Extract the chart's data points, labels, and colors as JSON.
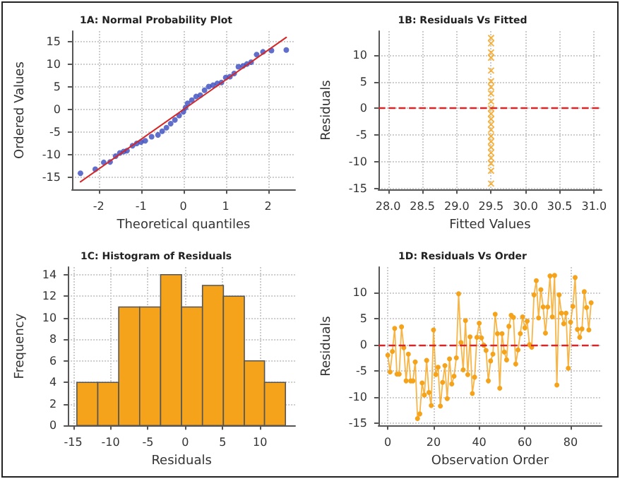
{
  "chart_data": [
    {
      "type": "scatter",
      "title": "1A: Normal Probability Plot",
      "xlabel": "Theoretical quantiles",
      "ylabel": "Ordered Values",
      "xlim": [
        -2.63,
        2.64
      ],
      "ylim": [
        -17.7,
        17.4
      ],
      "xticks": [
        -2,
        -1,
        0,
        1,
        2
      ],
      "yticks": [
        -15,
        -10,
        -5,
        0,
        5,
        10,
        15
      ],
      "grid": true,
      "series": [
        {
          "type": "scatter",
          "marker": "circle",
          "color": "#3a4bbf",
          "x": [
            -2.43,
            -2.08,
            -1.88,
            -1.73,
            -1.6,
            -1.5,
            -1.41,
            -1.33,
            -1.2,
            -1.1,
            -1.0,
            -0.9,
            -0.75,
            -0.6,
            -0.5,
            -0.4,
            -0.3,
            -0.2,
            -0.1,
            0,
            0.05,
            0.1,
            0.2,
            0.3,
            0.4,
            0.5,
            0.6,
            0.7,
            0.8,
            0.9,
            1.0,
            1.1,
            1.2,
            1.3,
            1.41,
            1.5,
            1.6,
            1.73,
            1.88,
            2.08,
            2.43
          ],
          "values": [
            -14.1,
            -13.2,
            -11.7,
            -11.6,
            -10.3,
            -9.6,
            -9.3,
            -9.1,
            -8.0,
            -7.5,
            -7.2,
            -6.9,
            -6.0,
            -5.6,
            -4.8,
            -4.0,
            -3.1,
            -2.3,
            -1.3,
            -0.5,
            0.4,
            1.4,
            2.1,
            2.9,
            3.2,
            4.3,
            5.1,
            5.4,
            5.8,
            6.0,
            7.1,
            7.3,
            8.0,
            9.5,
            9.7,
            10.1,
            10.5,
            12.2,
            12.8,
            13.1,
            13.2
          ]
        },
        {
          "type": "line",
          "marker": "none",
          "color": "#d62728",
          "x": [
            -2.43,
            2.43
          ],
          "values": [
            -16,
            16
          ]
        }
      ]
    },
    {
      "type": "scatter",
      "title": "1B: Residuals Vs Fitted",
      "xlabel": "Fitted Values",
      "ylabel": "Residuals",
      "xlim": [
        27.86,
        31.11
      ],
      "ylim": [
        -15.2,
        14.5
      ],
      "xticks": [
        {
          "value": 28,
          "label": "28.0"
        },
        28.5,
        {
          "value": 29,
          "label": "29.0"
        },
        29.5,
        {
          "value": 30,
          "label": "30.0"
        },
        30.5,
        {
          "value": 31,
          "label": "31.0"
        }
      ],
      "yticks": [
        -15,
        -10,
        -5,
        0,
        5,
        10
      ],
      "grid": true,
      "marker": "cross",
      "ref_lines": [
        {
          "axis": "y",
          "value": 0,
          "color": "#d62728",
          "line_style": "dashed"
        }
      ],
      "series": [
        {
          "color": "#f5a31a",
          "x": [
            29.5,
            29.5,
            29.5,
            29.5,
            29.5,
            29.5,
            29.5,
            29.5,
            29.5,
            29.5,
            29.5,
            29.5,
            29.5,
            29.5,
            29.5,
            29.5,
            29.5,
            29.5,
            29.5,
            29.5,
            29.5,
            29.5
          ],
          "values": [
            -14.1,
            -11.7,
            -10.3,
            -9.3,
            -8.3,
            -7.3,
            -6.2,
            -5.2,
            -4.0,
            -3.0,
            -2.0,
            -1.0,
            0.0,
            1.3,
            2.8,
            4.0,
            5.1,
            7.1,
            9.5,
            10.5,
            12.2,
            13.2
          ]
        }
      ]
    },
    {
      "type": "histogram",
      "title": "1C: Histogram of Residuals",
      "xlabel": "Residuals",
      "ylabel": "Frequency",
      "xlim": [
        -15.7,
        14.7
      ],
      "ylim": [
        0,
        14.7
      ],
      "xticks": [
        -15,
        -10,
        -5,
        0,
        5,
        10
      ],
      "yticks": [
        0,
        2,
        4,
        6,
        8,
        10,
        12,
        14
      ],
      "grid": true,
      "color": "#f5a31a",
      "bins": [
        -14.5,
        -11.7,
        -8.9,
        -6.1,
        -3.3,
        -0.5,
        2.3,
        5.1,
        7.9,
        10.6,
        13.4
      ],
      "values": [
        4,
        4,
        11,
        11,
        14,
        11,
        13,
        12,
        6,
        4
      ]
    },
    {
      "type": "line",
      "title": "1D: Residuals Vs Order",
      "xlabel": "Observation Order",
      "ylabel": "Residuals",
      "xlim": [
        -4.1,
        93.6
      ],
      "ylim": [
        -15.4,
        14.8
      ],
      "xticks": [
        0,
        20,
        40,
        60,
        80
      ],
      "yticks": [
        -15,
        -10,
        -5,
        0,
        5,
        10
      ],
      "grid": true,
      "marker": "circle",
      "ref_lines": [
        {
          "axis": "y",
          "value": 0,
          "color": "#d62728",
          "line_style": "dashed"
        }
      ],
      "series": [
        {
          "color": "#f5a31a",
          "x": [
            0,
            1,
            2,
            3,
            4,
            5,
            6,
            7,
            8,
            9,
            10,
            11,
            12,
            13,
            14,
            15,
            16,
            17,
            18,
            19,
            20,
            21,
            22,
            23,
            24,
            25,
            26,
            27,
            28,
            29,
            30,
            31,
            32,
            33,
            34,
            35,
            36,
            37,
            38,
            39,
            40,
            41,
            42,
            43,
            44,
            45,
            46,
            47,
            48,
            49,
            50,
            51,
            52,
            53,
            54,
            55,
            56,
            57,
            58,
            59,
            60,
            61,
            62,
            63,
            64,
            65,
            66,
            67,
            68,
            69,
            70,
            71,
            72,
            73,
            74,
            75,
            76,
            77,
            78,
            79,
            80,
            81,
            82,
            83,
            84,
            85,
            86,
            87,
            88,
            89
          ],
          "values": [
            -2,
            -5.2,
            -1.3,
            3.1,
            -5.6,
            -5.6,
            3.4,
            -0.6,
            -6.9,
            -1.8,
            -6.9,
            -6.9,
            -3.3,
            -14.1,
            -13.2,
            -7.3,
            -9.6,
            -3.0,
            -9.1,
            -11.6,
            2.8,
            -5.7,
            -4.3,
            -11.7,
            -7.2,
            -4.0,
            -10.3,
            -2.7,
            -7.5,
            -6.0,
            -2.5,
            9.7,
            0.4,
            -4.8,
            4.6,
            -5.7,
            1.5,
            -9.3,
            -6.2,
            1.4,
            4.1,
            1.3,
            -0.1,
            -1.1,
            -6.9,
            -3.1,
            -1.8,
            5.8,
            2.1,
            -8.3,
            2.1,
            -1.4,
            -2.9,
            3.5,
            5.6,
            5.2,
            -3.7,
            -1.0,
            2.1,
            5.3,
            3.2,
            4.5,
            0.0,
            -0.5,
            9.5,
            12.2,
            5.1,
            10.5,
            7.2,
            2.2,
            7.2,
            13.1,
            5.3,
            13.2,
            -7.7,
            9.5,
            6.0,
            4.0,
            6.0,
            -4.5,
            4.3,
            7.3,
            12.8,
            2.9,
            1.4,
            3.0,
            10.1,
            7.1,
            2.8,
            8.0
          ]
        }
      ]
    }
  ]
}
